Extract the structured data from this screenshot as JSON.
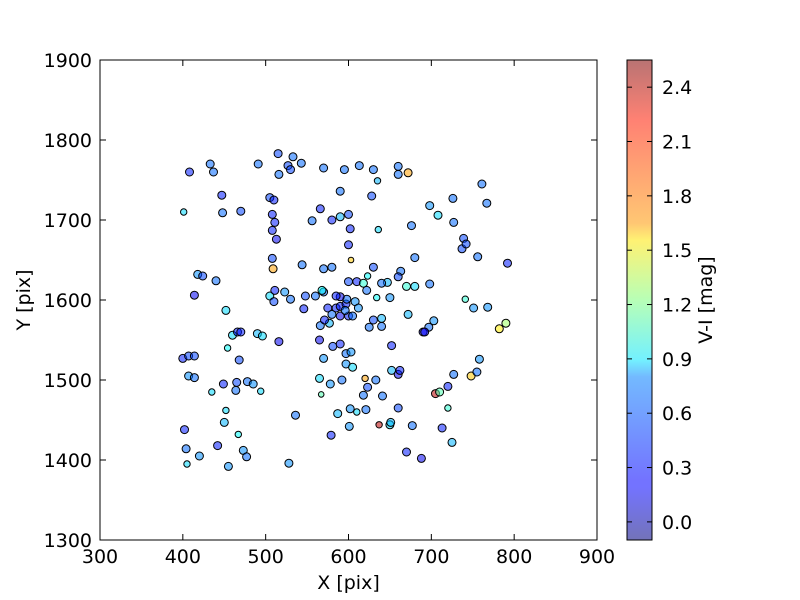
{
  "chart_data": {
    "type": "scatter",
    "title": "",
    "xlabel": "X [pix]",
    "ylabel": "Y [pix]",
    "xlim": [
      300,
      900
    ],
    "ylim": [
      1300,
      1900
    ],
    "xticks": [
      300,
      400,
      500,
      600,
      700,
      800,
      900
    ],
    "yticks": [
      1300,
      1400,
      1500,
      1600,
      1700,
      1800,
      1900
    ],
    "grid": false,
    "colorbar": {
      "label": "V-I [mag]",
      "colormap": "jet",
      "alpha": 0.55,
      "range": [
        -0.1,
        2.55
      ],
      "ticks": [
        0.0,
        0.3,
        0.6,
        0.9,
        1.2,
        1.5,
        1.8,
        2.1,
        2.4
      ],
      "tick_labels": [
        "0.0",
        "0.3",
        "0.6",
        "0.9",
        "1.2",
        "1.5",
        "1.8",
        "2.1",
        "2.4"
      ]
    },
    "points": [
      [
        408,
        1760,
        0.3,
        10
      ],
      [
        433,
        1770,
        0.5,
        10
      ],
      [
        437,
        1760,
        0.5,
        10
      ],
      [
        447,
        1731,
        0.3,
        10
      ],
      [
        448,
        1709,
        0.5,
        10
      ],
      [
        470,
        1711,
        0.4,
        10
      ],
      [
        491,
        1770,
        0.5,
        10
      ],
      [
        515,
        1783,
        0.4,
        10
      ],
      [
        527,
        1768,
        0.4,
        10
      ],
      [
        530,
        1763,
        0.4,
        10
      ],
      [
        533,
        1779,
        0.5,
        10
      ],
      [
        543,
        1771,
        0.5,
        10
      ],
      [
        516,
        1757,
        0.5,
        10
      ],
      [
        505,
        1728,
        0.4,
        10
      ],
      [
        510,
        1725,
        0.3,
        10
      ],
      [
        508,
        1707,
        0.3,
        10
      ],
      [
        511,
        1697,
        0.3,
        10
      ],
      [
        508,
        1687,
        0.3,
        10
      ],
      [
        513,
        1676,
        0.2,
        10
      ],
      [
        401,
        1710,
        0.8,
        8
      ],
      [
        418,
        1632,
        0.6,
        10
      ],
      [
        424,
        1630,
        0.4,
        10
      ],
      [
        440,
        1624,
        0.5,
        10
      ],
      [
        414,
        1606,
        0.2,
        10
      ],
      [
        452,
        1587,
        0.8,
        10
      ],
      [
        460,
        1556,
        0.8,
        10
      ],
      [
        454,
        1540,
        0.9,
        8
      ],
      [
        466,
        1560,
        0.3,
        10
      ],
      [
        470,
        1560,
        0.3,
        10
      ],
      [
        490,
        1558,
        0.7,
        10
      ],
      [
        496,
        1555,
        0.8,
        10
      ],
      [
        508,
        1652,
        0.4,
        10
      ],
      [
        509,
        1639,
        1.8,
        10
      ],
      [
        505,
        1605,
        0.8,
        10
      ],
      [
        510,
        1598,
        0.4,
        10
      ],
      [
        511,
        1612,
        0.3,
        10
      ],
      [
        523,
        1610,
        0.6,
        10
      ],
      [
        530,
        1601,
        0.5,
        10
      ],
      [
        516,
        1548,
        0.2,
        10
      ],
      [
        556,
        1699,
        0.5,
        10
      ],
      [
        566,
        1714,
        0.3,
        10
      ],
      [
        570,
        1765,
        0.5,
        10
      ],
      [
        590,
        1736,
        0.5,
        10
      ],
      [
        595,
        1763,
        0.5,
        10
      ],
      [
        613,
        1768,
        0.5,
        10
      ],
      [
        630,
        1763,
        0.5,
        10
      ],
      [
        635,
        1749,
        0.7,
        8
      ],
      [
        628,
        1730,
        0.4,
        10
      ],
      [
        600,
        1707,
        0.4,
        10
      ],
      [
        590,
        1704,
        0.7,
        10
      ],
      [
        580,
        1700,
        0.3,
        10
      ],
      [
        602,
        1689,
        0.3,
        10
      ],
      [
        600,
        1669,
        0.3,
        10
      ],
      [
        636,
        1688,
        0.8,
        8
      ],
      [
        603,
        1650,
        1.7,
        7
      ],
      [
        544,
        1644,
        0.5,
        10
      ],
      [
        570,
        1639,
        0.5,
        10
      ],
      [
        580,
        1641,
        0.5,
        10
      ],
      [
        600,
        1623,
        0.4,
        10
      ],
      [
        610,
        1623,
        0.3,
        10
      ],
      [
        618,
        1621,
        1.0,
        10
      ],
      [
        623,
        1630,
        0.9,
        8
      ],
      [
        622,
        1612,
        0.5,
        10
      ],
      [
        630,
        1641,
        0.4,
        10
      ],
      [
        660,
        1767,
        0.5,
        10
      ],
      [
        672,
        1759,
        1.8,
        10
      ],
      [
        660,
        1757,
        0.5,
        10
      ],
      [
        676,
        1693,
        0.5,
        10
      ],
      [
        698,
        1718,
        0.6,
        10
      ],
      [
        708,
        1706,
        0.8,
        10
      ],
      [
        726,
        1727,
        0.5,
        10
      ],
      [
        727,
        1697,
        0.5,
        10
      ],
      [
        739,
        1677,
        0.4,
        10
      ],
      [
        737,
        1664,
        0.4,
        10
      ],
      [
        742,
        1670,
        0.4,
        10
      ],
      [
        761,
        1745,
        0.5,
        10
      ],
      [
        767,
        1721,
        0.5,
        10
      ],
      [
        756,
        1654,
        0.5,
        10
      ],
      [
        792,
        1646,
        0.3,
        10
      ],
      [
        741,
        1601,
        1.0,
        8
      ],
      [
        751,
        1590,
        0.6,
        10
      ],
      [
        768,
        1591,
        0.6,
        10
      ],
      [
        790,
        1571,
        1.3,
        10
      ],
      [
        782,
        1564,
        1.6,
        10
      ],
      [
        663,
        1636,
        0.5,
        10
      ],
      [
        660,
        1629,
        0.4,
        10
      ],
      [
        670,
        1617,
        1.0,
        10
      ],
      [
        680,
        1617,
        0.8,
        10
      ],
      [
        680,
        1653,
        0.5,
        10
      ],
      [
        698,
        1620,
        0.5,
        10
      ],
      [
        672,
        1582,
        0.7,
        10
      ],
      [
        697,
        1566,
        0.5,
        10
      ],
      [
        703,
        1574,
        0.6,
        10
      ],
      [
        690,
        1560,
        0.2,
        10
      ],
      [
        705,
        1483,
        2.4,
        10
      ],
      [
        720,
        1492,
        0.3,
        10
      ],
      [
        710,
        1485,
        1.1,
        10
      ],
      [
        720,
        1465,
        1.0,
        8
      ],
      [
        713,
        1440,
        0.3,
        10
      ],
      [
        725,
        1422,
        0.7,
        10
      ],
      [
        748,
        1505,
        1.7,
        10
      ],
      [
        727,
        1507,
        0.5,
        10
      ],
      [
        755,
        1510,
        0.5,
        10
      ],
      [
        758,
        1526,
        0.6,
        10
      ],
      [
        597,
        1533,
        0.5,
        10
      ],
      [
        603,
        1535,
        0.6,
        10
      ],
      [
        597,
        1520,
        0.6,
        10
      ],
      [
        605,
        1516,
        0.8,
        10
      ],
      [
        592,
        1500,
        0.5,
        10
      ],
      [
        578,
        1495,
        0.6,
        10
      ],
      [
        620,
        1502,
        1.8,
        8
      ],
      [
        623,
        1491,
        0.4,
        10
      ],
      [
        641,
        1480,
        0.5,
        10
      ],
      [
        618,
        1481,
        0.5,
        10
      ],
      [
        633,
        1500,
        0.5,
        10
      ],
      [
        652,
        1512,
        0.7,
        10
      ],
      [
        660,
        1507,
        0.2,
        10
      ],
      [
        662,
        1512,
        0.3,
        10
      ],
      [
        652,
        1543,
        0.3,
        10
      ],
      [
        640,
        1567,
        0.5,
        10
      ],
      [
        625,
        1566,
        0.5,
        10
      ],
      [
        640,
        1577,
        0.7,
        10
      ],
      [
        630,
        1575,
        0.4,
        10
      ],
      [
        650,
        1603,
        0.6,
        10
      ],
      [
        634,
        1603,
        0.9,
        8
      ],
      [
        647,
        1622,
        0.7,
        10
      ],
      [
        640,
        1621,
        0.5,
        10
      ],
      [
        577,
        1571,
        0.7,
        10
      ],
      [
        590,
        1580,
        0.2,
        10
      ],
      [
        581,
        1542,
        0.4,
        10
      ],
      [
        590,
        1545,
        0.3,
        10
      ],
      [
        566,
        1568,
        0.5,
        10
      ],
      [
        571,
        1575,
        0.3,
        10
      ],
      [
        575,
        1590,
        0.3,
        10
      ],
      [
        580,
        1582,
        0.5,
        10
      ],
      [
        585,
        1590,
        0.3,
        10
      ],
      [
        590,
        1592,
        0.3,
        10
      ],
      [
        597,
        1595,
        0.3,
        10
      ],
      [
        600,
        1580,
        0.3,
        10
      ],
      [
        605,
        1580,
        0.5,
        10
      ],
      [
        596,
        1587,
        0.5,
        10
      ],
      [
        598,
        1601,
        0.5,
        10
      ],
      [
        608,
        1598,
        0.6,
        10
      ],
      [
        612,
        1590,
        0.6,
        10
      ],
      [
        590,
        1604,
        0.2,
        10
      ],
      [
        585,
        1605,
        0.3,
        10
      ],
      [
        570,
        1610,
        0.5,
        10
      ],
      [
        568,
        1612,
        0.9,
        10
      ],
      [
        560,
        1605,
        0.5,
        10
      ],
      [
        548,
        1605,
        0.4,
        10
      ],
      [
        546,
        1589,
        0.3,
        10
      ],
      [
        565,
        1550,
        0.2,
        10
      ],
      [
        570,
        1527,
        0.6,
        10
      ],
      [
        400,
        1527,
        0.3,
        10
      ],
      [
        407,
        1530,
        0.4,
        10
      ],
      [
        414,
        1530,
        0.4,
        10
      ],
      [
        407,
        1505,
        0.6,
        10
      ],
      [
        414,
        1503,
        0.5,
        10
      ],
      [
        435,
        1485,
        0.8,
        8
      ],
      [
        449,
        1495,
        0.3,
        10
      ],
      [
        464,
        1487,
        0.5,
        10
      ],
      [
        465,
        1497,
        0.4,
        10
      ],
      [
        468,
        1525,
        0.4,
        10
      ],
      [
        478,
        1498,
        0.5,
        10
      ],
      [
        485,
        1495,
        0.6,
        10
      ],
      [
        494,
        1486,
        0.8,
        8
      ],
      [
        452,
        1462,
        0.8,
        8
      ],
      [
        450,
        1447,
        0.7,
        10
      ],
      [
        467,
        1432,
        0.9,
        8
      ],
      [
        402,
        1438,
        0.3,
        10
      ],
      [
        404,
        1414,
        0.5,
        10
      ],
      [
        420,
        1405,
        0.6,
        10
      ],
      [
        442,
        1418,
        0.3,
        10
      ],
      [
        405,
        1395,
        0.8,
        8
      ],
      [
        455,
        1392,
        0.6,
        10
      ],
      [
        473,
        1412,
        0.6,
        10
      ],
      [
        477,
        1404,
        0.5,
        10
      ],
      [
        528,
        1396,
        0.6,
        10
      ],
      [
        536,
        1456,
        0.5,
        10
      ],
      [
        565,
        1502,
        0.8,
        10
      ],
      [
        567,
        1482,
        1.1,
        7
      ],
      [
        587,
        1458,
        0.7,
        10
      ],
      [
        579,
        1431,
        0.3,
        10
      ],
      [
        601,
        1442,
        0.6,
        10
      ],
      [
        602,
        1464,
        0.6,
        10
      ],
      [
        610,
        1460,
        0.8,
        8
      ],
      [
        621,
        1463,
        0.5,
        10
      ],
      [
        637,
        1444,
        2.4,
        8
      ],
      [
        650,
        1444,
        0.8,
        10
      ],
      [
        660,
        1465,
        0.4,
        10
      ],
      [
        670,
        1410,
        0.3,
        10
      ],
      [
        688,
        1402,
        0.2,
        10
      ],
      [
        677,
        1443,
        0.5,
        10
      ],
      [
        692,
        1560,
        0.2,
        10
      ],
      [
        651,
        1447,
        0.7,
        10
      ]
    ]
  }
}
